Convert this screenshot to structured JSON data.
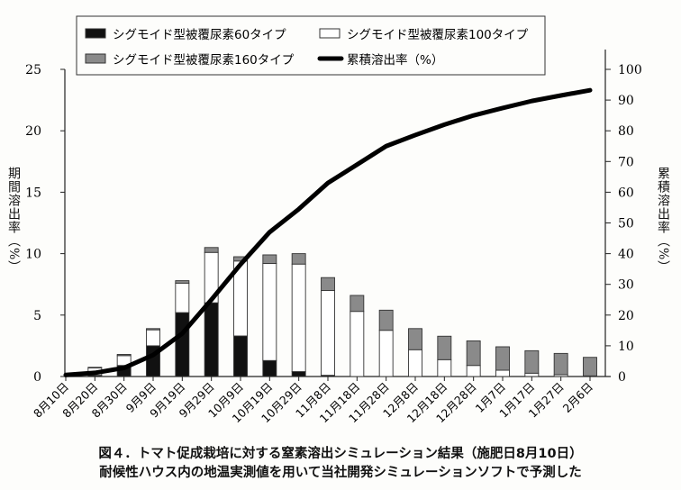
{
  "chart_data": {
    "type": "bar",
    "title": "",
    "categories": [
      "8月10日",
      "8月20日",
      "8月30日",
      "9月9日",
      "9月19日",
      "9月29日",
      "10月9日",
      "10月19日",
      "10月29日",
      "11月8日",
      "11月18日",
      "11月28日",
      "12月8日",
      "12月18日",
      "12月28日",
      "1月7日",
      "1月17日",
      "1月27日",
      "2月6日"
    ],
    "ylabel": "期間溶出率（%）",
    "y2label": "累積溶出率（%）",
    "ylim": [
      0,
      25
    ],
    "y2lim": [
      0,
      100
    ],
    "yticks": [
      "0",
      "5",
      "10",
      "15",
      "20",
      "25"
    ],
    "y2ticks": [
      "0",
      "10",
      "20",
      "30",
      "40",
      "50",
      "60",
      "70",
      "80",
      "90",
      "100"
    ],
    "stacked": true,
    "series": [
      {
        "name": "シグモイド型被覆尿素60タイプ",
        "kind": "bar",
        "color": "#111111",
        "values": [
          0,
          0.1,
          0.9,
          2.5,
          5.2,
          6.0,
          3.3,
          1.3,
          0.4,
          0.1,
          0,
          0,
          0,
          0,
          0,
          0,
          0,
          0,
          0
        ]
      },
      {
        "name": "シグモイド型被覆尿素100タイプ",
        "kind": "bar",
        "color": "#ffffff",
        "values": [
          0,
          0.6,
          0.8,
          1.3,
          2.4,
          4.1,
          6.1,
          7.9,
          8.75,
          6.9,
          5.3,
          3.76,
          2.18,
          1.37,
          0.9,
          0.51,
          0.27,
          0.15,
          0.05
        ]
      },
      {
        "name": "シグモイド型被覆尿素160タイプ",
        "kind": "bar",
        "color": "#8a8a8a",
        "values": [
          0,
          0.05,
          0.1,
          0.1,
          0.2,
          0.4,
          0.35,
          0.7,
          0.85,
          1.05,
          1.3,
          1.64,
          1.72,
          1.91,
          2.0,
          1.91,
          1.83,
          1.73,
          1.51
        ]
      },
      {
        "name": "累積溶出率（%）",
        "kind": "line",
        "axis": "right",
        "color": "#000000",
        "values": [
          0.5,
          1.2,
          2.8,
          7.0,
          14,
          25,
          36.5,
          47,
          54.5,
          63,
          69,
          75,
          78.6,
          82,
          85,
          87.4,
          89.7,
          91.5,
          93.2
        ]
      }
    ],
    "legend": "top",
    "grid": false
  },
  "caption": {
    "line1": "図４．トマト促成栽培に対する窒素溶出シミュレーション結果（施肥日8月10日）",
    "line2": "耐候性ハウス内の地温実測値を用いて当社開発シミュレーションソフトで予測した"
  }
}
